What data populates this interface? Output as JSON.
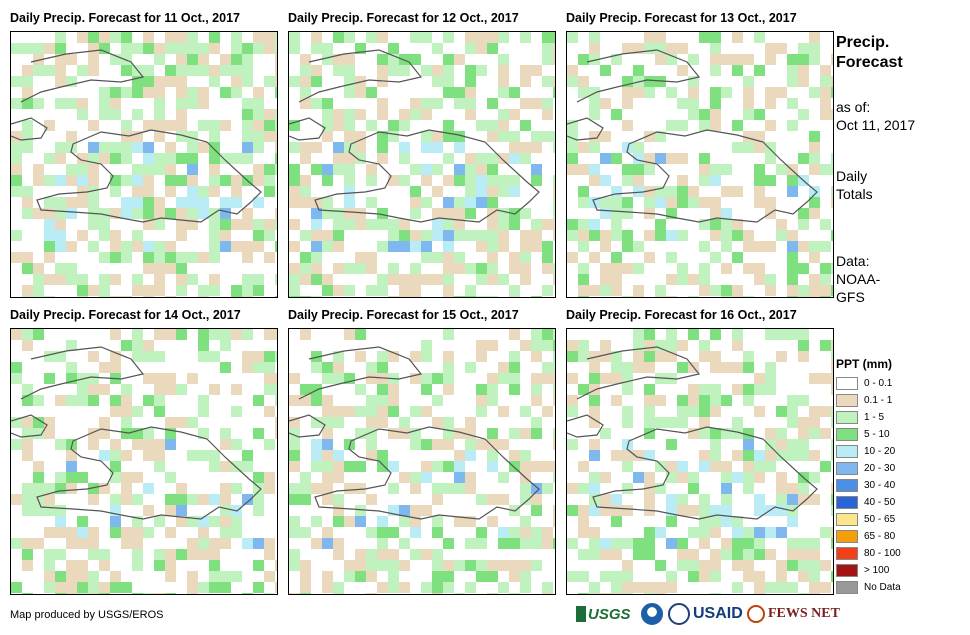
{
  "panels": [
    {
      "title": "Daily Precip. Forecast for 11 Oct., 2017",
      "seed": 11,
      "wet": 0.9
    },
    {
      "title": "Daily Precip. Forecast for 12 Oct., 2017",
      "seed": 12,
      "wet": 0.8
    },
    {
      "title": "Daily Precip. Forecast for 13 Oct., 2017",
      "seed": 13,
      "wet": 0.55
    },
    {
      "title": "Daily Precip. Forecast for 14 Oct., 2017",
      "seed": 14,
      "wet": 0.6
    },
    {
      "title": "Daily Precip. Forecast for 15 Oct., 2017",
      "seed": 15,
      "wet": 0.65
    },
    {
      "title": "Daily Precip. Forecast for 16 Oct., 2017",
      "seed": 16,
      "wet": 0.75
    }
  ],
  "sidebar": {
    "title_line1": "Precip.",
    "title_line2": "Forecast",
    "asof_label": "as of:",
    "asof_date": "Oct 11, 2017",
    "totals_line1": "Daily",
    "totals_line2": "Totals",
    "data_line1": "Data:",
    "data_line2": "NOAA-",
    "data_line3": "GFS"
  },
  "legend": {
    "title": "PPT (mm)",
    "items": [
      {
        "label": "0 - 0.1",
        "color": "#ffffff"
      },
      {
        "label": "0.1 - 1",
        "color": "#ead9bc"
      },
      {
        "label": "1 - 5",
        "color": "#bff2bf"
      },
      {
        "label": "5 - 10",
        "color": "#7ee07e"
      },
      {
        "label": "10 - 20",
        "color": "#b9ecf5"
      },
      {
        "label": "20 - 30",
        "color": "#7fb8ef"
      },
      {
        "label": "30 - 40",
        "color": "#4d8fe6"
      },
      {
        "label": "40 - 50",
        "color": "#2a63d6"
      },
      {
        "label": "50 - 65",
        "color": "#fde68a"
      },
      {
        "label": "65 - 80",
        "color": "#f59e0b"
      },
      {
        "label": "80 - 100",
        "color": "#f0401a"
      },
      {
        "label": "> 100",
        "color": "#a31515"
      },
      {
        "label": "No Data",
        "color": "#999999"
      }
    ]
  },
  "footer": {
    "credit": "Map produced by USGS/EROS",
    "logos": [
      "USGS",
      "NOAA",
      "USAID",
      "FEWS NET"
    ]
  }
}
